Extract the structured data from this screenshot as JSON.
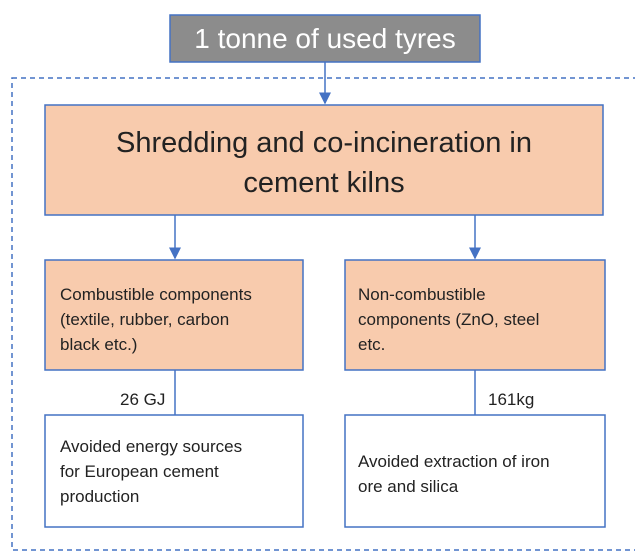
{
  "nodes": [
    {
      "lines": [
        "1 tonne of used tyres"
      ]
    },
    {
      "lines": [
        "Shredding and co-incineration in",
        "cement kilns"
      ]
    },
    {
      "lines": [
        "Combustible components",
        "(textile, rubber, carbon",
        "black etc.)"
      ]
    },
    {
      "lines": [
        "Non-combustible",
        "components (ZnO, steel",
        "etc."
      ]
    },
    {
      "lines": [
        "Avoided energy sources",
        "for European cement",
        "production"
      ]
    },
    {
      "lines": [
        "Avoided extraction of iron",
        "ore and silica"
      ]
    }
  ],
  "edges": [
    {
      "label": "26 GJ"
    },
    {
      "label": "161kg"
    }
  ]
}
